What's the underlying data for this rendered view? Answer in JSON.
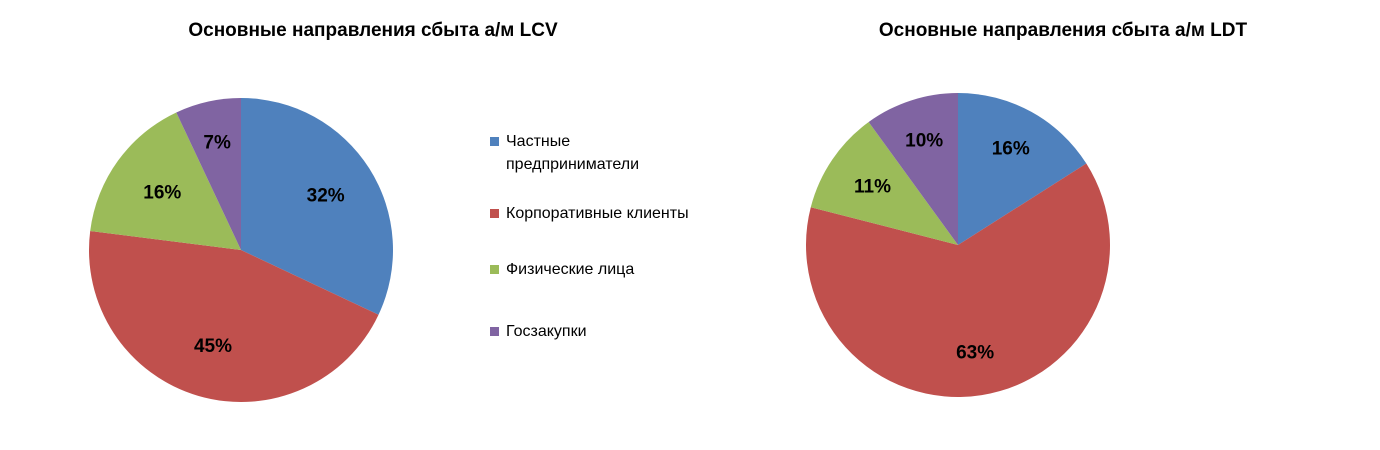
{
  "colors": {
    "chastnye": "#4F81BD",
    "korporativnye": "#C0504D",
    "fizicheskie": "#9BBB59",
    "goszakupki": "#8064A2"
  },
  "legend": {
    "items": [
      {
        "label": "Частные предприниматели",
        "color": "#4F81BD"
      },
      {
        "label": "Корпоративные клиенты",
        "color": "#C0504D"
      },
      {
        "label": "Физические лица",
        "color": "#9BBB59"
      },
      {
        "label": "Госзакупки",
        "color": "#8064A2"
      }
    ]
  },
  "chart_data": [
    {
      "type": "pie",
      "title": "Основные направления сбыта а/м LCV",
      "categories": [
        "Частные предприниматели",
        "Корпоративные клиенты",
        "Физические лица",
        "Госзакупки"
      ],
      "values": [
        32,
        45,
        16,
        7
      ],
      "labels": [
        "32%",
        "45%",
        "16%",
        "7%"
      ],
      "colors": [
        "#4F81BD",
        "#C0504D",
        "#9BBB59",
        "#8064A2"
      ],
      "legend": "right"
    },
    {
      "type": "pie",
      "title": "Основные направления сбыта а/м LDT",
      "categories": [
        "Частные предприниматели",
        "Корпоративные клиенты",
        "Физические лица",
        "Госзакупки"
      ],
      "values": [
        16,
        63,
        11,
        10
      ],
      "labels": [
        "16%",
        "63%",
        "11%",
        "10%"
      ],
      "colors": [
        "#4F81BD",
        "#C0504D",
        "#9BBB59",
        "#8064A2"
      ],
      "legend": "none"
    }
  ]
}
